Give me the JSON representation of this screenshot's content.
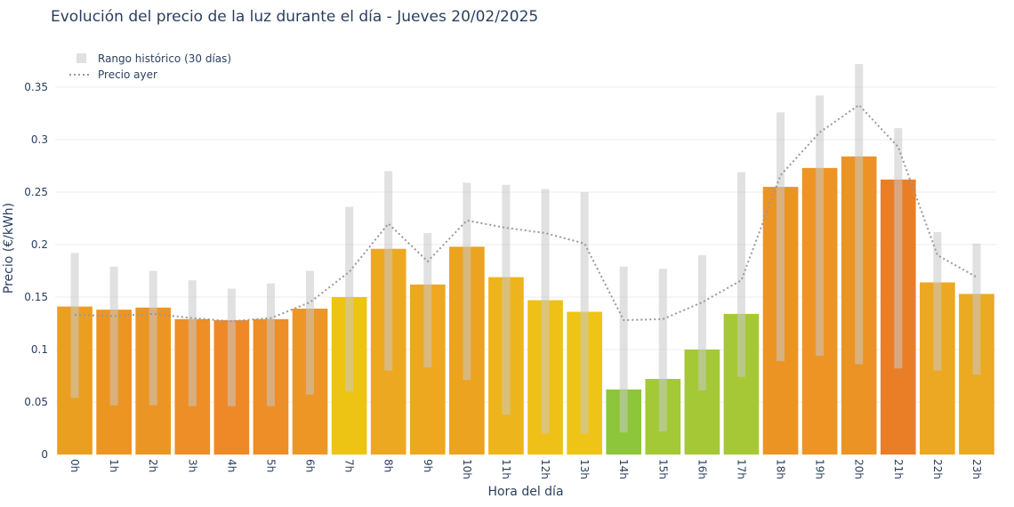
{
  "chart_data": {
    "type": "bar",
    "title": "Evolución del precio de la luz durante el día - Jueves 20/02/2025",
    "xlabel": "Hora del día",
    "ylabel": "Precio (€/kWh)",
    "ylim": [
      0,
      0.39
    ],
    "yticks": [
      0,
      0.05,
      0.1,
      0.15,
      0.2,
      0.25,
      0.3,
      0.35
    ],
    "ytick_labels": [
      "0",
      "0.05",
      "0.1",
      "0.15",
      "0.2",
      "0.25",
      "0.3",
      "0.35"
    ],
    "grid": true,
    "legend_position": "top-left",
    "categories": [
      "0h",
      "1h",
      "2h",
      "3h",
      "4h",
      "5h",
      "6h",
      "7h",
      "8h",
      "9h",
      "10h",
      "11h",
      "12h",
      "13h",
      "14h",
      "15h",
      "16h",
      "17h",
      "18h",
      "19h",
      "20h",
      "21h",
      "22h",
      "23h"
    ],
    "series": [
      {
        "name": "",
        "type": "bar",
        "values": [
          0.141,
          0.138,
          0.14,
          0.129,
          0.128,
          0.129,
          0.139,
          0.15,
          0.196,
          0.162,
          0.198,
          0.169,
          0.147,
          0.136,
          0.062,
          0.072,
          0.1,
          0.134,
          0.255,
          0.273,
          0.284,
          0.262,
          0.164,
          0.153
        ],
        "colors": [
          "#eb9f21",
          "#ec9523",
          "#eb9624",
          "#ee8e26",
          "#ef8927",
          "#ee8e26",
          "#ed9625",
          "#eec414",
          "#eda821",
          "#eda820",
          "#eba320",
          "#edb51b",
          "#efc017",
          "#eec517",
          "#8dc63a",
          "#a3c937",
          "#a5c836",
          "#a7c836",
          "#eb9424",
          "#ee9424",
          "#eb9425",
          "#ea7e27",
          "#eca822",
          "#ebaa21"
        ]
      },
      {
        "name": "Rango histórico (30 días)",
        "type": "range",
        "color": "#d9d9d9",
        "low": [
          0.054,
          0.047,
          0.047,
          0.046,
          0.046,
          0.046,
          0.057,
          0.06,
          0.08,
          0.083,
          0.071,
          0.038,
          0.02,
          0.02,
          0.021,
          0.022,
          0.061,
          0.074,
          0.089,
          0.094,
          0.086,
          0.082,
          0.08,
          0.076
        ],
        "high": [
          0.192,
          0.179,
          0.175,
          0.166,
          0.158,
          0.163,
          0.175,
          0.236,
          0.27,
          0.211,
          0.259,
          0.257,
          0.253,
          0.25,
          0.179,
          0.177,
          0.19,
          0.269,
          0.326,
          0.342,
          0.372,
          0.311,
          0.212,
          0.201
        ]
      },
      {
        "name": "Precio ayer",
        "type": "line",
        "style": "dotted",
        "color": "#999999",
        "values": [
          0.133,
          0.132,
          0.134,
          0.13,
          0.127,
          0.13,
          0.145,
          0.174,
          0.22,
          0.184,
          0.223,
          0.216,
          0.211,
          0.201,
          0.128,
          0.129,
          0.145,
          0.166,
          0.266,
          0.307,
          0.333,
          0.293,
          0.19,
          0.169
        ]
      }
    ]
  }
}
